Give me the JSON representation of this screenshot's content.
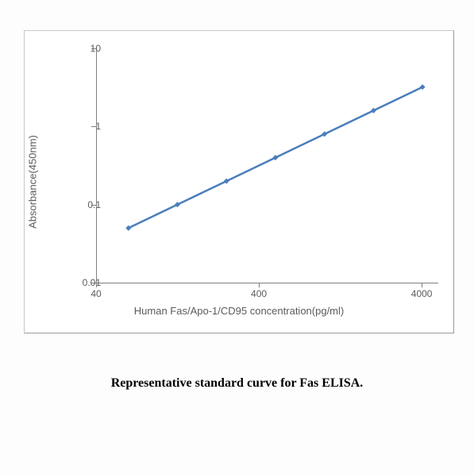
{
  "chart": {
    "type": "line",
    "x_scale": "log",
    "y_scale": "log",
    "xlim": [
      40,
      5000
    ],
    "ylim": [
      0.01,
      10
    ],
    "x_ticks": [
      40,
      400,
      4000
    ],
    "y_ticks": [
      0.01,
      0.1,
      1,
      10
    ],
    "y_tick_labels": [
      "0.01",
      "0.1",
      "1",
      "10"
    ],
    "x_tick_labels": [
      "40",
      "400",
      "4000"
    ],
    "x_axis_title": "Human Fas/Apo-1/CD95  concentration(pg/ml)",
    "y_axis_title": "Absorbance(450nm)",
    "data_points": [
      {
        "x": 62.5,
        "y": 0.05
      },
      {
        "x": 125,
        "y": 0.1
      },
      {
        "x": 250,
        "y": 0.2
      },
      {
        "x": 500,
        "y": 0.4
      },
      {
        "x": 1000,
        "y": 0.8
      },
      {
        "x": 2000,
        "y": 1.6
      },
      {
        "x": 4000,
        "y": 3.2
      }
    ],
    "line_color": "#4a7ebb",
    "marker_color": "#4a7ebb",
    "marker_type": "diamond",
    "marker_size": 7,
    "line_width": 2.5,
    "background_color": "#ffffff",
    "axis_color": "#7f7f7f",
    "tick_label_color": "#5b5b5b",
    "tick_label_fontsize": 12,
    "axis_title_fontsize": 13
  },
  "caption": "Representative standard curve for Fas ELISA."
}
